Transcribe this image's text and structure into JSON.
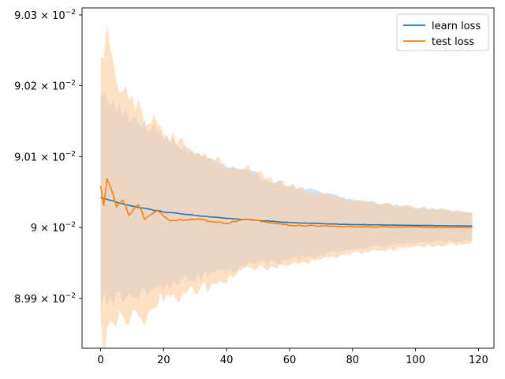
{
  "chart_data": {
    "type": "line",
    "title": "",
    "xlabel": "",
    "ylabel": "",
    "yscale": "log",
    "xlim": [
      -5.9,
      124.9
    ],
    "ylim": [
      0.08983,
      0.09031
    ],
    "grid": false,
    "legend_position": "top-right",
    "x_ticks": [
      0,
      20,
      40,
      60,
      80,
      100,
      120
    ],
    "x_tick_labels": [
      "0",
      "20",
      "40",
      "60",
      "80",
      "100",
      "120"
    ],
    "y_ticks": [
      0.0899,
      0.09,
      0.0901,
      0.0902,
      0.0903
    ],
    "y_tick_labels": [
      {
        "mantissa": "8.99",
        "exp": "−2"
      },
      {
        "mantissa": "9",
        "exp": "−2"
      },
      {
        "mantissa": "9.01",
        "exp": "−2"
      },
      {
        "mantissa": "9.02",
        "exp": "−2"
      },
      {
        "mantissa": "9.03",
        "exp": "−2"
      }
    ],
    "x": {
      "start": 0,
      "end": 118,
      "step": 1
    },
    "series": [
      {
        "name": "learn loss",
        "color": "#1f77b4",
        "band_color": "#a9d3ff",
        "band_opacity": 0.6,
        "mean_anchors": [
          [
            0,
            0.090042
          ],
          [
            10,
            0.09003
          ],
          [
            20,
            0.090022
          ],
          [
            30,
            0.090017
          ],
          [
            40,
            0.090013
          ],
          [
            60,
            0.090007
          ],
          [
            80,
            0.090004
          ],
          [
            100,
            0.090003
          ],
          [
            118,
            0.090002
          ]
        ],
        "mean_noise": 6e-07,
        "band_anchors": [
          [
            0,
            0.000145
          ],
          [
            10,
            0.000125
          ],
          [
            20,
            0.000105
          ],
          [
            30,
            8.8e-05
          ],
          [
            40,
            7.3e-05
          ],
          [
            60,
            5.2e-05
          ],
          [
            80,
            3.5e-05
          ],
          [
            100,
            2.5e-05
          ],
          [
            118,
            2e-05
          ]
        ],
        "band_noise": 1.2e-05
      },
      {
        "name": "test loss",
        "color": "#ff7f0e",
        "band_color": "#ffcc99",
        "band_opacity": 0.6,
        "mean_anchors": [
          [
            0,
            0.09006
          ],
          [
            1,
            0.09003
          ],
          [
            2,
            0.090068
          ],
          [
            3,
            0.09006
          ],
          [
            5,
            0.09003
          ],
          [
            7,
            0.09004
          ],
          [
            9,
            0.090018
          ],
          [
            12,
            0.090033
          ],
          [
            14,
            0.090012
          ],
          [
            18,
            0.090023
          ],
          [
            22,
            0.09001
          ],
          [
            30,
            0.090012
          ],
          [
            40,
            0.090006
          ],
          [
            46,
            0.090012
          ],
          [
            60,
            0.090003
          ],
          [
            80,
            0.090001
          ],
          [
            118,
            0.09
          ]
        ],
        "mean_noise": 1.5e-06,
        "band_anchors": [
          [
            0,
            0.00019
          ],
          [
            2,
            0.00022
          ],
          [
            5,
            0.00017
          ],
          [
            10,
            0.00015
          ],
          [
            20,
            0.00012
          ],
          [
            30,
            0.0001
          ],
          [
            40,
            8e-05
          ],
          [
            60,
            5.5e-05
          ],
          [
            80,
            3.8e-05
          ],
          [
            100,
            2.8e-05
          ],
          [
            118,
            2.2e-05
          ]
        ],
        "band_noise": 1.8e-05
      }
    ]
  }
}
